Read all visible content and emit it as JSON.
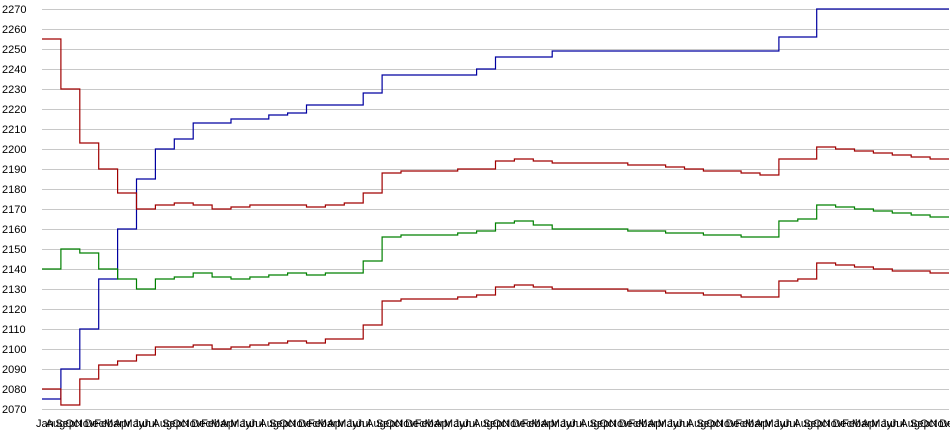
{
  "chart_data": {
    "type": "line",
    "title": "",
    "xlabel": "",
    "ylabel": "",
    "ylim": [
      2070,
      2270
    ],
    "y_ticks": [
      2070,
      2080,
      2090,
      2100,
      2110,
      2120,
      2130,
      2140,
      2150,
      2160,
      2170,
      2180,
      2190,
      2200,
      2210,
      2220,
      2230,
      2240,
      2250,
      2260,
      2270
    ],
    "x_tick_labels": [
      "Jan",
      "Aug",
      "Sep",
      "Oct",
      "Nov",
      "Dec",
      "Feb",
      "Mar",
      "Apr",
      "May",
      "Jun",
      "Jul",
      "Aug",
      "Sep",
      "Oct",
      "Nov",
      "Dec",
      "Feb",
      "Mar",
      "Apr",
      "May",
      "Jun",
      "Jul",
      "Aug",
      "Sep",
      "Oct",
      "Nov",
      "Dec",
      "Feb",
      "Mar",
      "Apr",
      "May",
      "Jun",
      "Jul",
      "Aug",
      "Sep",
      "Oct",
      "Nov",
      "Dec",
      "Feb",
      "Mar",
      "Apr",
      "May",
      "Jun",
      "Jul",
      "Aug",
      "Sep",
      "Oct",
      "Nov",
      "Dec",
      "Feb",
      "Mar",
      "Apr",
      "May",
      "Jun",
      "Jul",
      "Aug",
      "Sep",
      "Oct",
      "Nov",
      "Dec",
      "Feb",
      "Mar",
      "Apr",
      "May",
      "Jun",
      "Jul",
      "Aug",
      "Sep",
      "Oct",
      "Nov",
      "Dec",
      "Feb",
      "Mar",
      "Apr",
      "May",
      "Jun",
      "Jul",
      "Aug",
      "Sep",
      "Oct",
      "Nov",
      "Dec",
      "Feb",
      "Mar",
      "Apr",
      "May",
      "Jun",
      "Jul",
      "Aug",
      "Sep",
      "Oct",
      "Nov",
      "Dec"
    ],
    "grid": true,
    "legend": "none",
    "x": [
      0,
      1,
      2,
      3,
      4,
      5,
      6,
      7,
      8,
      9,
      10,
      11,
      12,
      13,
      14,
      15,
      16,
      17,
      18,
      19,
      20,
      21,
      22,
      23,
      24,
      25,
      26,
      27,
      28,
      29,
      30,
      31,
      32,
      33,
      34,
      35,
      36,
      37,
      38,
      39,
      40,
      41,
      42,
      43,
      44,
      45,
      46,
      47,
      48
    ],
    "series": [
      {
        "color": "#0000a0",
        "values": [
          2075,
          2090,
          2110,
          2135,
          2160,
          2185,
          2200,
          2205,
          2213,
          2213,
          2215,
          2215,
          2217,
          2218,
          2222,
          2222,
          2222,
          2228,
          2237,
          2237,
          2237,
          2237,
          2237,
          2240,
          2246,
          2246,
          2246,
          2249,
          2249,
          2249,
          2249,
          2249,
          2249,
          2249,
          2249,
          2249,
          2249,
          2249,
          2249,
          2256,
          2256,
          2270,
          2270,
          2270,
          2270,
          2270,
          2270,
          2270,
          2270
        ]
      },
      {
        "color": "#a00000",
        "values": [
          2255,
          2230,
          2203,
          2190,
          2178,
          2170,
          2172,
          2173,
          2172,
          2170,
          2171,
          2172,
          2172,
          2172,
          2171,
          2172,
          2173,
          2178,
          2188,
          2189,
          2189,
          2189,
          2190,
          2190,
          2194,
          2195,
          2194,
          2193,
          2193,
          2193,
          2193,
          2192,
          2192,
          2191,
          2190,
          2189,
          2189,
          2188,
          2187,
          2195,
          2195,
          2201,
          2200,
          2199,
          2198,
          2197,
          2196,
          2195,
          2195
        ]
      },
      {
        "color": "#008000",
        "values": [
          2140,
          2150,
          2148,
          2140,
          2135,
          2130,
          2135,
          2136,
          2138,
          2136,
          2135,
          2136,
          2137,
          2138,
          2137,
          2138,
          2138,
          2144,
          2156,
          2157,
          2157,
          2157,
          2158,
          2159,
          2163,
          2164,
          2162,
          2160,
          2160,
          2160,
          2160,
          2159,
          2159,
          2158,
          2158,
          2157,
          2157,
          2156,
          2156,
          2164,
          2165,
          2172,
          2171,
          2170,
          2169,
          2168,
          2167,
          2166,
          2166
        ]
      },
      {
        "color": "#a00000",
        "values": [
          2080,
          2072,
          2085,
          2092,
          2094,
          2097,
          2101,
          2101,
          2102,
          2100,
          2101,
          2102,
          2103,
          2104,
          2103,
          2105,
          2105,
          2112,
          2124,
          2125,
          2125,
          2125,
          2126,
          2127,
          2131,
          2132,
          2131,
          2130,
          2130,
          2130,
          2130,
          2129,
          2129,
          2128,
          2128,
          2127,
          2127,
          2126,
          2126,
          2134,
          2135,
          2143,
          2142,
          2141,
          2140,
          2139,
          2139,
          2138,
          2138
        ]
      }
    ]
  }
}
